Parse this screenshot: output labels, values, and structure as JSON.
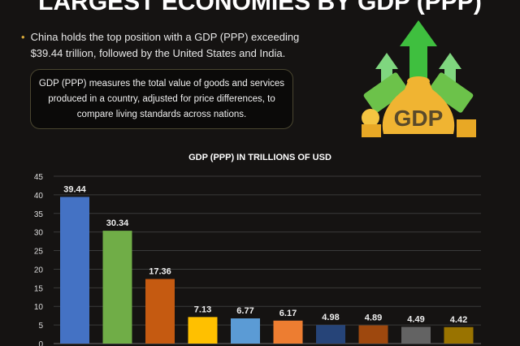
{
  "header": {
    "title": "LARGEST ECONOMIES BY GDP (PPP)"
  },
  "summary": {
    "bullet": "China holds the top position with a GDP (PPP) exceeding $39.44 trillion, followed by the United States and India.",
    "definition": "GDP (PPP) measures the total value of goods and services produced in a country, adjusted for price differences, to compare living standards across nations."
  },
  "illustration": {
    "icon": "money-bag-growth-arrows-icon",
    "label": "GDP"
  },
  "chart_data": {
    "type": "bar",
    "title": "GDP (PPP) IN TRILLIONS OF USD",
    "xlabel": "",
    "ylabel": "",
    "ylim": [
      0,
      45
    ],
    "yticks": [
      0,
      5,
      10,
      15,
      20,
      25,
      30,
      35,
      40,
      45
    ],
    "grid": true,
    "values": [
      39.44,
      30.34,
      17.36,
      7.13,
      6.77,
      6.17,
      4.98,
      4.89,
      4.49,
      4.42
    ],
    "colors": [
      "#4472C4",
      "#70AD47",
      "#C55A11",
      "#FFC000",
      "#5B9BD5",
      "#ED7D31",
      "#264478",
      "#9E480E",
      "#636363",
      "#997300"
    ]
  }
}
